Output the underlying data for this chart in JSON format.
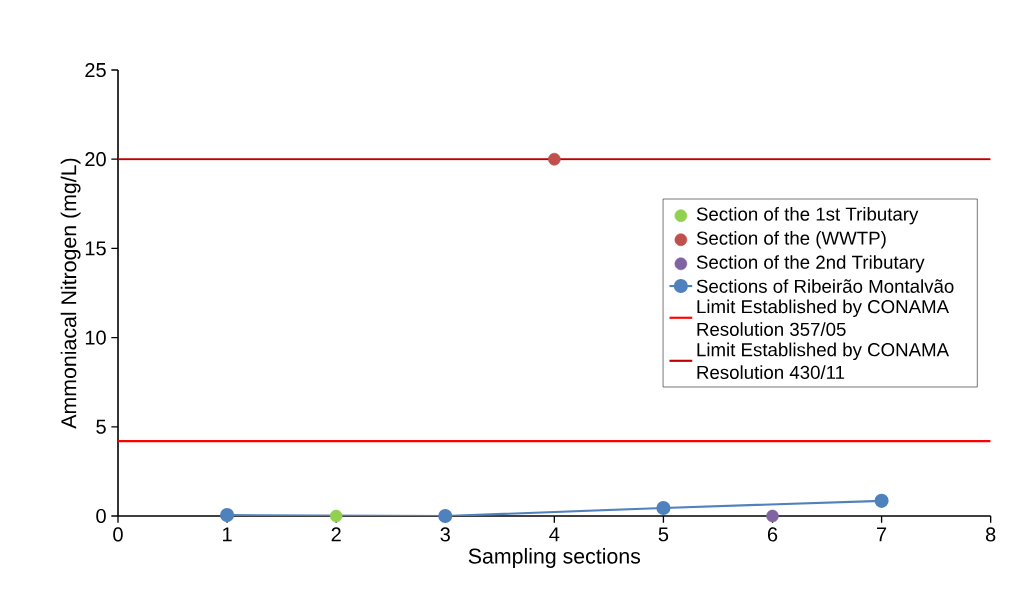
{
  "chart_data": {
    "type": "scatter",
    "xlabel": "Sampling sections",
    "ylabel": "Ammoniacal Nitrogen (mg/L)",
    "xlim": [
      0,
      8
    ],
    "xticks": [
      0,
      1,
      2,
      3,
      4,
      5,
      6,
      7,
      8
    ],
    "ylim": [
      0,
      25
    ],
    "yticks": [
      0,
      5,
      10,
      15,
      20,
      25
    ],
    "marker": "circle",
    "legend": "right",
    "series": [
      {
        "name": "Section of the 1st Tributary",
        "color": "#92d050",
        "x": [
          2
        ],
        "values": [
          0
        ]
      },
      {
        "name": "Section of the (WWTP)",
        "color": "#c0504d",
        "x": [
          4
        ],
        "values": [
          20
        ]
      },
      {
        "name": "Section of the 2nd Tributary",
        "color": "#8064a2",
        "x": [
          6
        ],
        "values": [
          0
        ]
      },
      {
        "name": "Sections of Ribeirão Montalvão",
        "type": "line",
        "line_style": "solid",
        "color": "#4f81bd",
        "x": [
          1,
          3,
          5,
          7
        ],
        "values": [
          0.05,
          0,
          0.45,
          0.85
        ]
      }
    ],
    "ref_lines": [
      {
        "axis": "y",
        "value": 4.2,
        "label": "Limit Established by CONAMA Resolution 357/05",
        "color": "#ff0000"
      },
      {
        "axis": "y",
        "value": 20,
        "label": "Limit Established by CONAMA Resolution 430/11",
        "color": "#c00000"
      }
    ]
  }
}
